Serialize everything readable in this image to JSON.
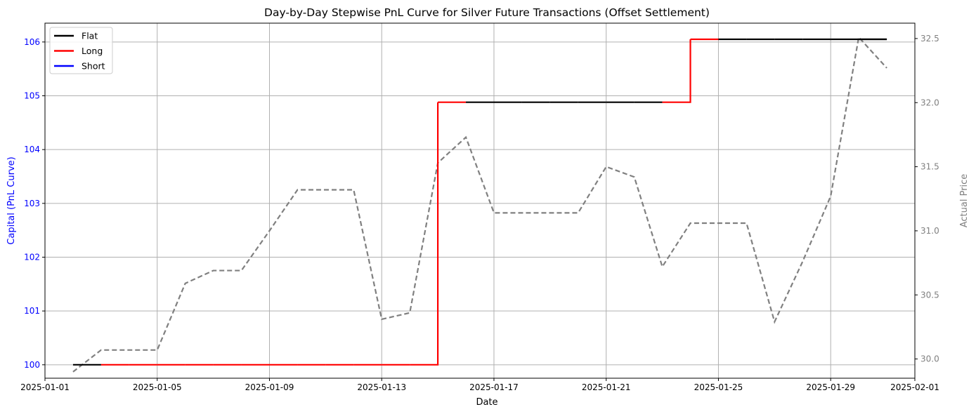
{
  "chart_data": {
    "type": "line",
    "title": "Day-by-Day Stepwise PnL Curve for Silver Future Transactions (Offset Settlement)",
    "xlabel": "Date",
    "ylabel_left": "Capital (PnL Curve)",
    "ylabel_right": "Actual Price",
    "grid": true,
    "legend_placement": "top-left",
    "xlim": [
      "2025-01-01",
      "2025-02-01"
    ],
    "ylim_left": [
      99.75,
      106.35
    ],
    "ylim_right": [
      29.85,
      32.62
    ],
    "x_ticks": [
      "2025-01-01",
      "2025-01-05",
      "2025-01-09",
      "2025-01-13",
      "2025-01-17",
      "2025-01-21",
      "2025-01-25",
      "2025-01-29",
      "2025-02-01"
    ],
    "y_ticks_left": [
      "100",
      "101",
      "102",
      "103",
      "104",
      "105",
      "106"
    ],
    "y_ticks_right": [
      "30.0",
      "30.5",
      "31.0",
      "31.5",
      "32.0",
      "32.5"
    ],
    "y_ticks_left_values": [
      100,
      101,
      102,
      103,
      104,
      105,
      106
    ],
    "y_ticks_right_values": [
      30.0,
      30.5,
      31.0,
      31.5,
      32.0,
      32.5
    ],
    "legend": [
      {
        "name": "Flat",
        "color": "#000000"
      },
      {
        "name": "Long",
        "color": "#ff0000"
      },
      {
        "name": "Short",
        "color": "#0000ff"
      }
    ],
    "pnl_steps": [
      {
        "date": "2025-01-02",
        "capital": 100.0,
        "position": "Flat"
      },
      {
        "date": "2025-01-03",
        "capital": 100.0,
        "position": "Long"
      },
      {
        "date": "2025-01-04",
        "capital": 100.0,
        "position": "Long"
      },
      {
        "date": "2025-01-05",
        "capital": 100.0,
        "position": "Long"
      },
      {
        "date": "2025-01-06",
        "capital": 100.0,
        "position": "Long"
      },
      {
        "date": "2025-01-07",
        "capital": 100.0,
        "position": "Long"
      },
      {
        "date": "2025-01-08",
        "capital": 100.0,
        "position": "Long"
      },
      {
        "date": "2025-01-09",
        "capital": 100.0,
        "position": "Long"
      },
      {
        "date": "2025-01-10",
        "capital": 100.0,
        "position": "Long"
      },
      {
        "date": "2025-01-11",
        "capital": 100.0,
        "position": "Long"
      },
      {
        "date": "2025-01-12",
        "capital": 100.0,
        "position": "Long"
      },
      {
        "date": "2025-01-13",
        "capital": 100.0,
        "position": "Long"
      },
      {
        "date": "2025-01-14",
        "capital": 100.0,
        "position": "Long"
      },
      {
        "date": "2025-01-15",
        "capital": 104.88,
        "position": "Long"
      },
      {
        "date": "2025-01-16",
        "capital": 104.88,
        "position": "Flat"
      },
      {
        "date": "2025-01-17",
        "capital": 104.88,
        "position": "Flat"
      },
      {
        "date": "2025-01-18",
        "capital": 104.88,
        "position": "Flat"
      },
      {
        "date": "2025-01-19",
        "capital": 104.88,
        "position": "Flat"
      },
      {
        "date": "2025-01-20",
        "capital": 104.88,
        "position": "Flat"
      },
      {
        "date": "2025-01-21",
        "capital": 104.88,
        "position": "Flat"
      },
      {
        "date": "2025-01-22",
        "capital": 104.88,
        "position": "Flat"
      },
      {
        "date": "2025-01-23",
        "capital": 104.88,
        "position": "Long"
      },
      {
        "date": "2025-01-24",
        "capital": 106.05,
        "position": "Long"
      },
      {
        "date": "2025-01-25",
        "capital": 106.05,
        "position": "Flat"
      },
      {
        "date": "2025-01-26",
        "capital": 106.05,
        "position": "Flat"
      },
      {
        "date": "2025-01-27",
        "capital": 106.05,
        "position": "Flat"
      },
      {
        "date": "2025-01-28",
        "capital": 106.05,
        "position": "Flat"
      },
      {
        "date": "2025-01-29",
        "capital": 106.05,
        "position": "Flat"
      },
      {
        "date": "2025-01-30",
        "capital": 106.05,
        "position": "Flat"
      },
      {
        "date": "2025-01-31",
        "capital": 106.05,
        "position": "Flat"
      }
    ],
    "price_series": {
      "color": "#808080",
      "style": "dashed",
      "points": [
        {
          "date": "2025-01-02",
          "price": 29.9
        },
        {
          "date": "2025-01-03",
          "price": 30.07
        },
        {
          "date": "2025-01-04",
          "price": 30.07
        },
        {
          "date": "2025-01-05",
          "price": 30.07
        },
        {
          "date": "2025-01-06",
          "price": 30.59
        },
        {
          "date": "2025-01-07",
          "price": 30.69
        },
        {
          "date": "2025-01-08",
          "price": 30.69
        },
        {
          "date": "2025-01-09",
          "price": 31.0
        },
        {
          "date": "2025-01-10",
          "price": 31.32
        },
        {
          "date": "2025-01-11",
          "price": 31.32
        },
        {
          "date": "2025-01-12",
          "price": 31.32
        },
        {
          "date": "2025-01-13",
          "price": 30.31
        },
        {
          "date": "2025-01-14",
          "price": 30.36
        },
        {
          "date": "2025-01-15",
          "price": 31.53
        },
        {
          "date": "2025-01-16",
          "price": 31.73
        },
        {
          "date": "2025-01-17",
          "price": 31.14
        },
        {
          "date": "2025-01-18",
          "price": 31.14
        },
        {
          "date": "2025-01-19",
          "price": 31.14
        },
        {
          "date": "2025-01-20",
          "price": 31.14
        },
        {
          "date": "2025-01-21",
          "price": 31.5
        },
        {
          "date": "2025-01-22",
          "price": 31.42
        },
        {
          "date": "2025-01-23",
          "price": 30.72
        },
        {
          "date": "2025-01-24",
          "price": 31.06
        },
        {
          "date": "2025-01-25",
          "price": 31.06
        },
        {
          "date": "2025-01-26",
          "price": 31.06
        },
        {
          "date": "2025-01-27",
          "price": 30.29
        },
        {
          "date": "2025-01-28",
          "price": 30.76
        },
        {
          "date": "2025-01-29",
          "price": 31.27
        },
        {
          "date": "2025-01-30",
          "price": 32.51
        },
        {
          "date": "2025-01-31",
          "price": 32.27
        }
      ]
    },
    "colors": {
      "left_axis": "#0000ff",
      "right_axis": "#808080",
      "grid": "#b0b0b0"
    }
  }
}
